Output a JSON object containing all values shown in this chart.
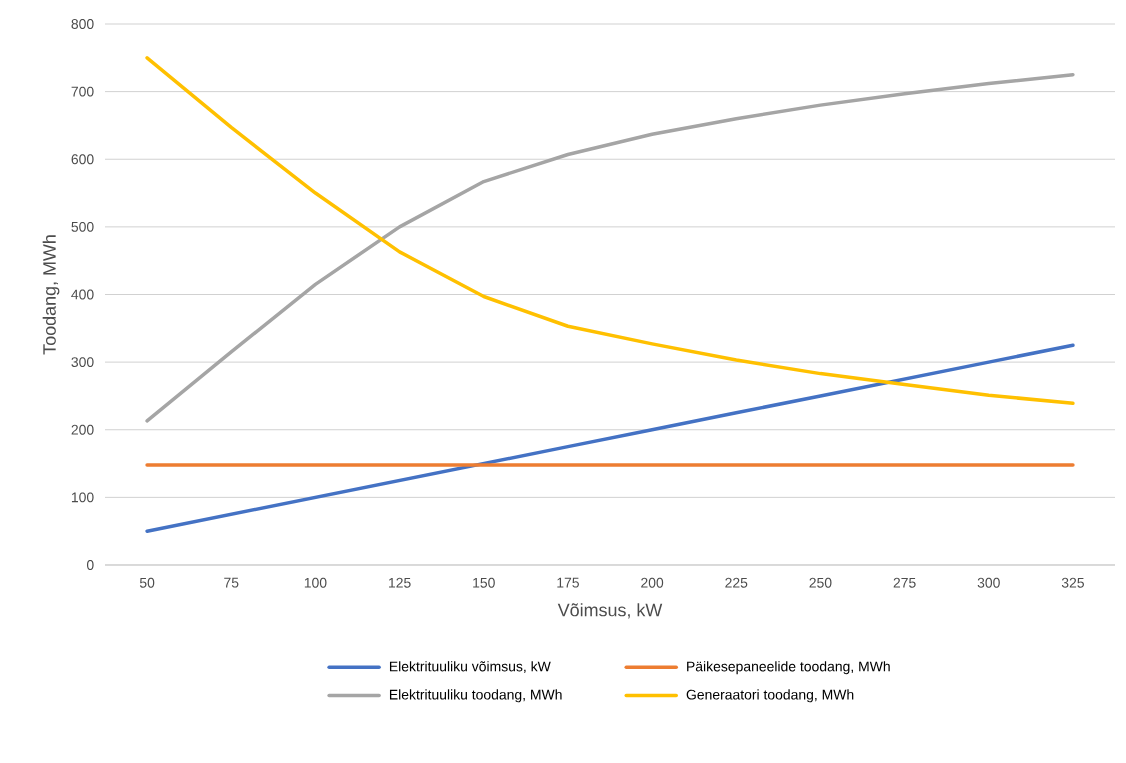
{
  "chart_data": {
    "type": "line",
    "xlabel": "Võimsus, kW",
    "ylabel": "Toodang, MWh",
    "categories": [
      "50",
      "75",
      "100",
      "125",
      "150",
      "175",
      "200",
      "225",
      "250",
      "275",
      "300",
      "325"
    ],
    "series": [
      {
        "name": "Elektrituuliku võimsus, kW",
        "color": "#4472c4",
        "values": [
          50,
          75,
          100,
          125,
          150,
          175,
          200,
          225,
          250,
          275,
          300,
          325
        ]
      },
      {
        "name": "Päikesepaneelide toodang, MWh",
        "color": "#ed7d31",
        "values": [
          148,
          148,
          148,
          148,
          148,
          148,
          148,
          148,
          148,
          148,
          148,
          148
        ]
      },
      {
        "name": "Elektrituuliku toodang, MWh",
        "color": "#a5a5a5",
        "values": [
          213,
          315,
          415,
          500,
          567,
          607,
          637,
          660,
          680,
          697,
          712,
          725
        ]
      },
      {
        "name": "Generaatori toodang, MWh",
        "color": "#ffc000",
        "values": [
          750,
          647,
          550,
          463,
          397,
          353,
          327,
          303,
          283,
          267,
          251,
          239
        ]
      }
    ],
    "ylim": [
      0,
      800
    ],
    "yticks": [
      0,
      100,
      200,
      300,
      400,
      500,
      600,
      700,
      800
    ],
    "grid": "y",
    "legend": "bottom",
    "marker": "none",
    "line_style": "solid"
  }
}
